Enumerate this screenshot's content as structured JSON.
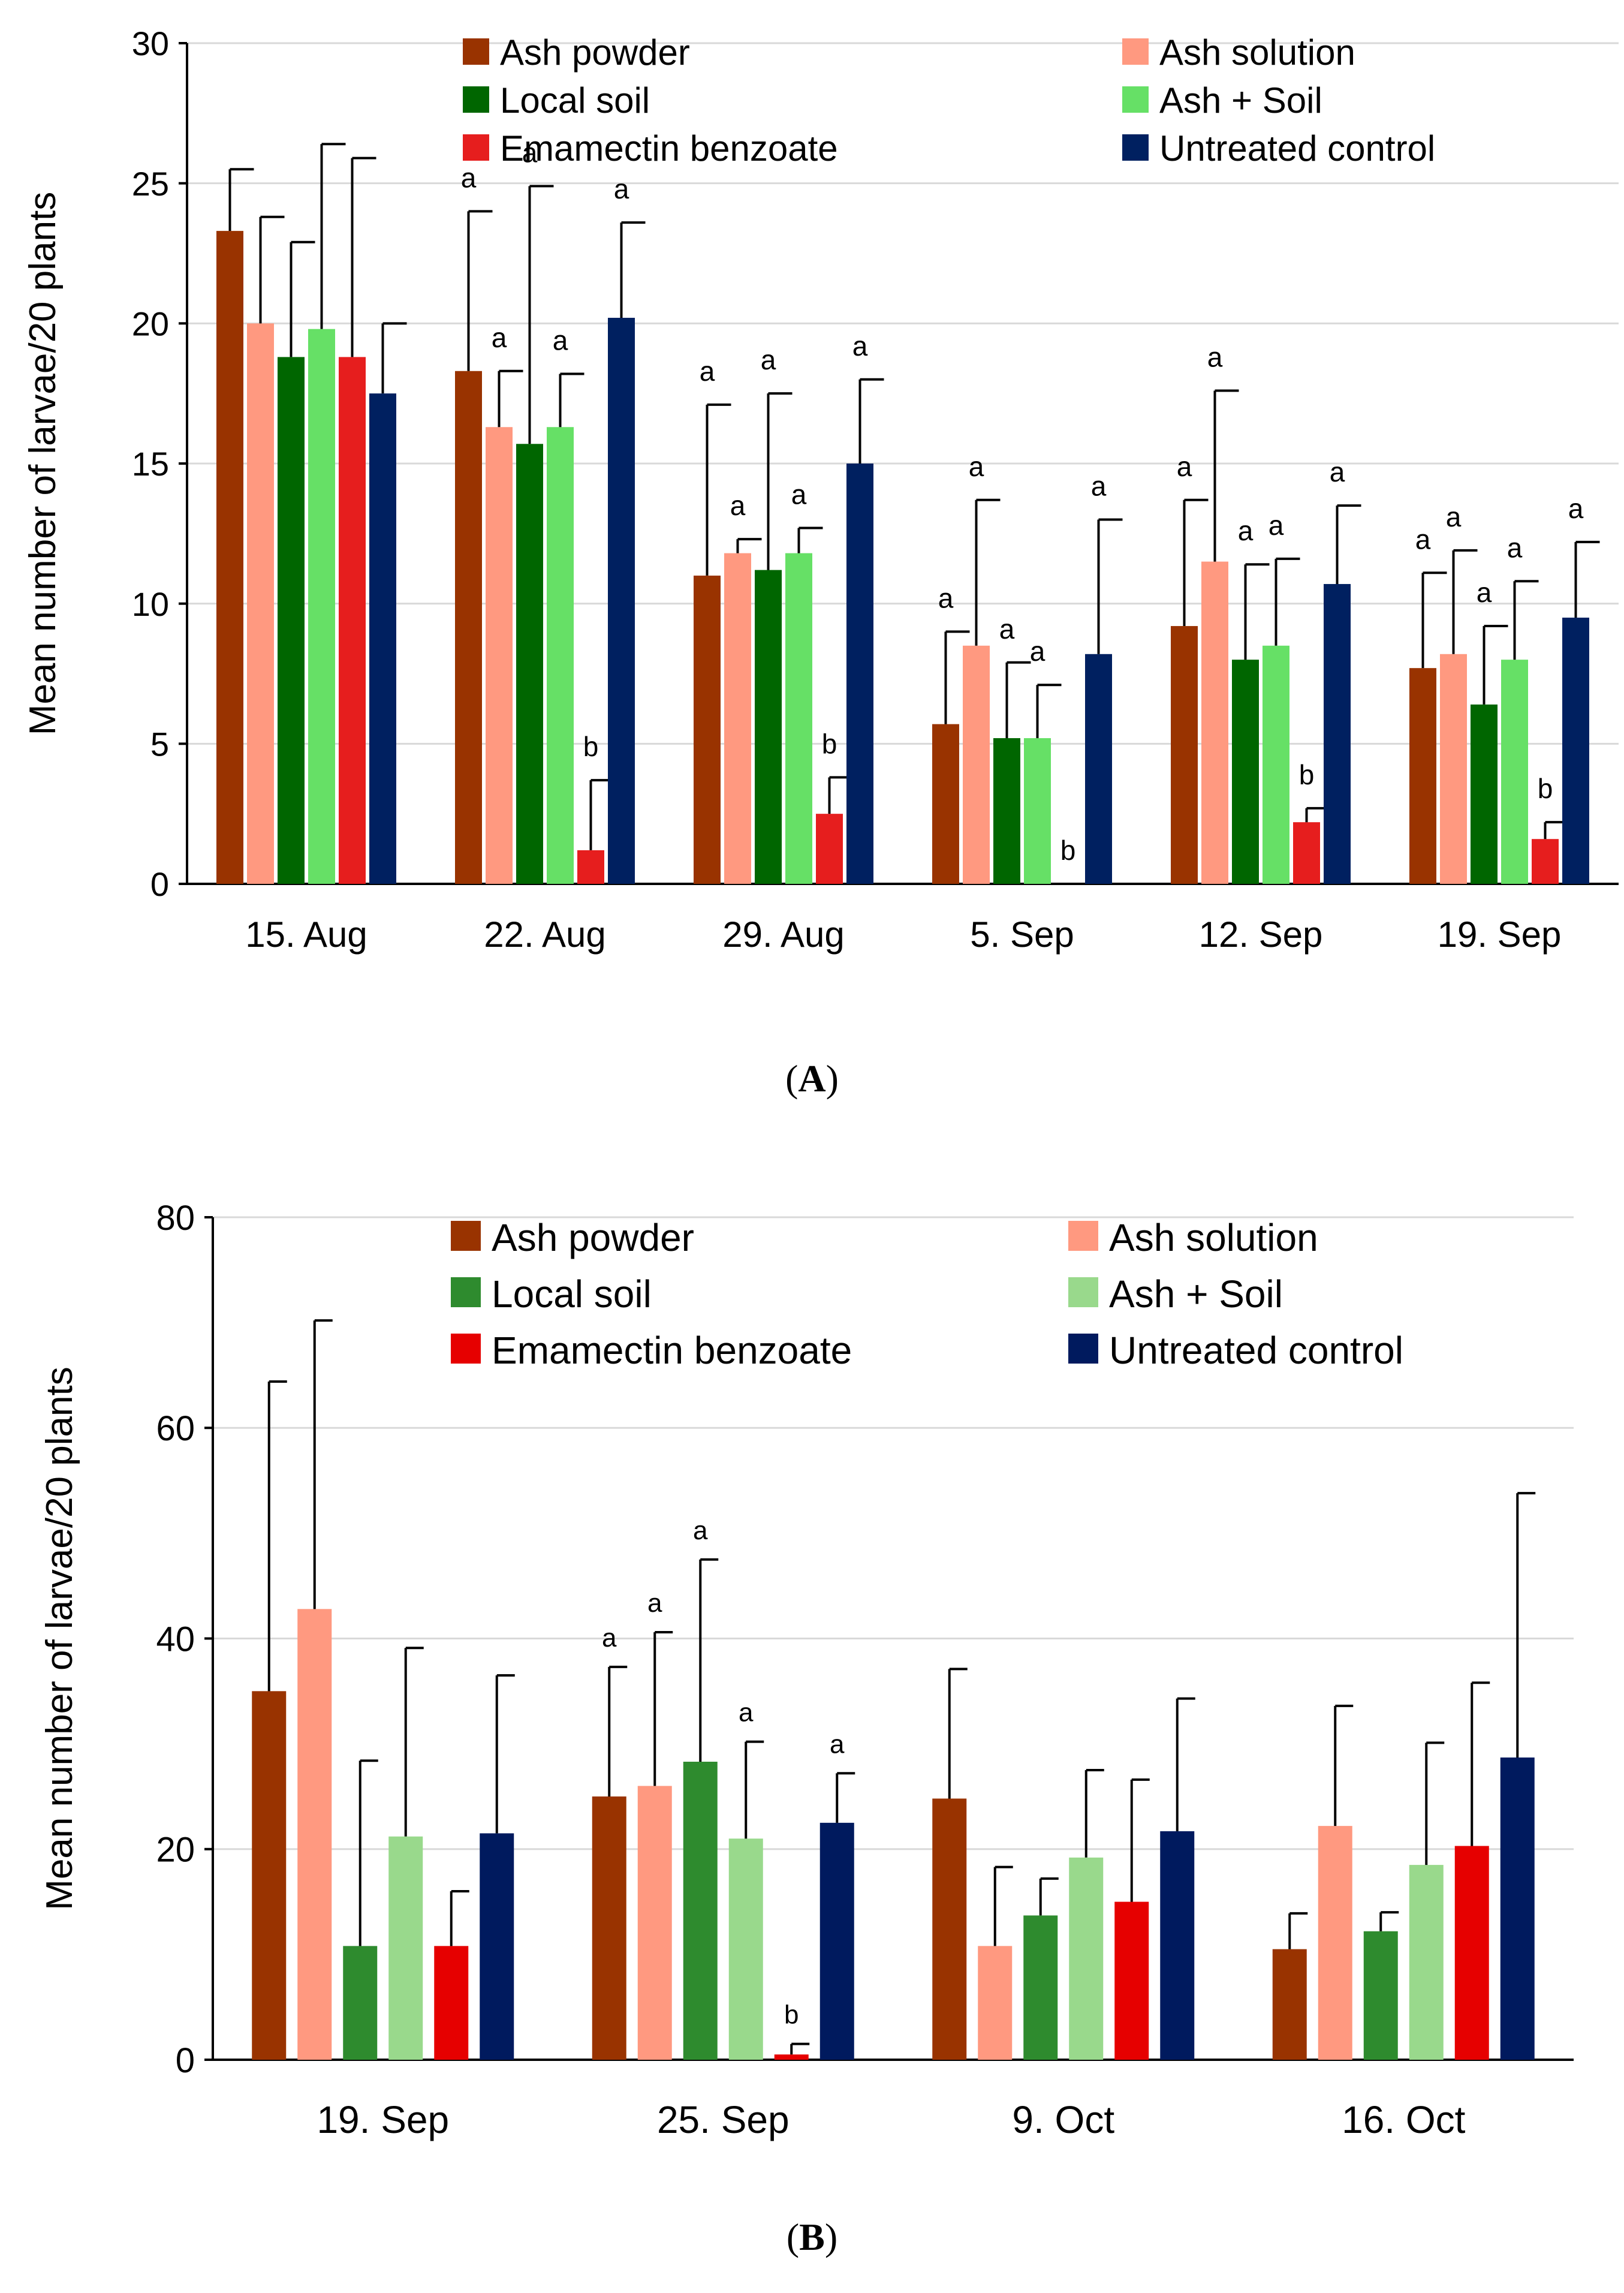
{
  "chart_data": [
    {
      "type": "bar",
      "panel": "A",
      "ylabel": "Mean number of larvae/20 plants",
      "ylim": [
        0,
        30
      ],
      "yticks": [
        0,
        5,
        10,
        15,
        20,
        25,
        30
      ],
      "grid": true,
      "legend_position": "top",
      "categories": [
        "15. Aug",
        "22. Aug",
        "29. Aug",
        "5. Sep",
        "12. Sep",
        "19. Sep"
      ],
      "series": [
        {
          "name": "Ash powder",
          "color": "#993300",
          "values": [
            23.3,
            18.3,
            11.0,
            5.7,
            9.2,
            7.7
          ],
          "errors": [
            2.2,
            5.7,
            6.1,
            3.3,
            4.5,
            3.4
          ],
          "letters": [
            "",
            "a",
            "a",
            "a",
            "a",
            "a"
          ]
        },
        {
          "name": "Ash solution",
          "color": "#FF9980",
          "values": [
            20.0,
            16.3,
            11.8,
            8.5,
            11.5,
            8.2
          ],
          "errors": [
            3.8,
            2.0,
            0.5,
            5.2,
            6.1,
            3.7
          ],
          "letters": [
            "",
            "a",
            "a",
            "a",
            "a",
            "a"
          ]
        },
        {
          "name": "Local soil",
          "color": "#006600",
          "values": [
            18.8,
            15.7,
            11.2,
            5.2,
            8.0,
            6.4
          ],
          "errors": [
            4.1,
            9.2,
            6.3,
            2.7,
            3.4,
            2.8
          ],
          "letters": [
            "",
            "a",
            "a",
            "a",
            "a",
            "a"
          ]
        },
        {
          "name": "Ash + Soil",
          "color": "#66E066",
          "values": [
            19.8,
            16.3,
            11.8,
            5.2,
            8.5,
            8.0
          ],
          "errors": [
            6.6,
            1.9,
            0.9,
            1.9,
            3.1,
            2.8
          ],
          "letters": [
            "",
            "a",
            "a",
            "a",
            "a",
            "a"
          ]
        },
        {
          "name": "Emamectin benzoate",
          "color": "#E61E1E",
          "values": [
            18.8,
            1.2,
            2.5,
            0,
            2.2,
            1.6
          ],
          "errors": [
            7.1,
            2.5,
            1.3,
            0,
            0.5,
            0.6
          ],
          "letters": [
            "",
            "b",
            "b",
            "b",
            "b",
            "b"
          ]
        },
        {
          "name": "Untreated control",
          "color": "#002060",
          "values": [
            17.5,
            20.2,
            15.0,
            8.2,
            10.7,
            9.5
          ],
          "errors": [
            2.5,
            3.4,
            3.0,
            4.8,
            2.8,
            2.7
          ],
          "letters": [
            "",
            "a",
            "a",
            "a",
            "a",
            "a"
          ]
        }
      ]
    },
    {
      "type": "bar",
      "panel": "B",
      "ylabel": "Mean number of larvae/20 plants",
      "ylim": [
        0,
        80
      ],
      "yticks": [
        0,
        20,
        40,
        60,
        80
      ],
      "grid": true,
      "legend_position": "top",
      "categories": [
        "19. Sep",
        "25. Sep",
        "9. Oct",
        "16. Oct"
      ],
      "series": [
        {
          "name": "Ash powder",
          "color": "#993300",
          "values": [
            35.0,
            25.0,
            24.8,
            10.5
          ],
          "errors": [
            29.4,
            12.3,
            12.3,
            3.4
          ],
          "letters": [
            "",
            "a",
            "",
            ""
          ]
        },
        {
          "name": "Ash solution",
          "color": "#FF9980",
          "values": [
            42.8,
            26.0,
            10.8,
            22.2
          ],
          "errors": [
            27.4,
            14.6,
            7.5,
            11.4
          ],
          "letters": [
            "",
            "a",
            "",
            ""
          ]
        },
        {
          "name": "Local soil",
          "color": "#2E8B2E",
          "values": [
            10.8,
            28.3,
            13.7,
            12.2
          ],
          "errors": [
            17.6,
            19.2,
            3.5,
            1.8
          ],
          "letters": [
            "",
            "a",
            "",
            ""
          ]
        },
        {
          "name": "Ash + Soil",
          "color": "#99D98C",
          "values": [
            21.2,
            21.0,
            19.2,
            18.5
          ],
          "errors": [
            17.9,
            9.2,
            8.3,
            11.6
          ],
          "letters": [
            "",
            "a",
            "",
            ""
          ]
        },
        {
          "name": "Emamectin benzoate",
          "color": "#E60000",
          "values": [
            10.8,
            0.5,
            15.0,
            20.3
          ],
          "errors": [
            5.2,
            1.0,
            11.6,
            15.5
          ],
          "letters": [
            "",
            "b",
            "",
            ""
          ]
        },
        {
          "name": "Untreated control",
          "color": "#001A5E",
          "values": [
            21.5,
            22.5,
            21.7,
            28.7
          ],
          "errors": [
            15.0,
            4.7,
            12.6,
            25.1
          ],
          "letters": [
            "",
            "a",
            "",
            ""
          ]
        }
      ]
    }
  ],
  "panel_labels": {
    "a": "A",
    "b": "B"
  }
}
